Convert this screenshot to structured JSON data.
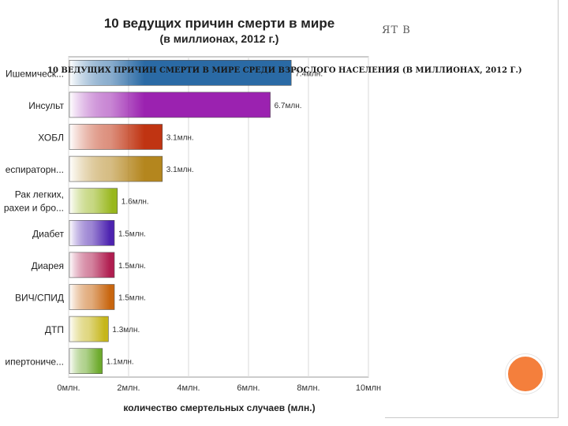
{
  "slide": {
    "title_fragment": "ЯТ В",
    "caption": "10 ВЕДУЩИХ ПРИЧИН СМЕРТИ В МИРЕ СРЕДИ ВЗРОСЛОГО НАСЕЛЕНИЯ (В МИЛЛИОНАХ, 2012 Г.)",
    "accent_color": "#f47f3c"
  },
  "chart_data": {
    "type": "bar",
    "orientation": "horizontal",
    "title": "10 ведущих причин смерти в мире",
    "subtitle": "(в миллионах, 2012 г.)",
    "xlabel": "количество смертельных случаев (млн.)",
    "ylabel": "",
    "xlim": [
      0,
      10
    ],
    "grid": true,
    "x_ticks": [
      0,
      2,
      4,
      6,
      8,
      10
    ],
    "x_tick_labels": [
      "0млн.",
      "2млн.",
      "4млн.",
      "6млн.",
      "8млн.",
      "10млн"
    ],
    "categories": [
      [
        "Ишемическ..."
      ],
      [
        "Инсульт"
      ],
      [
        "ХОБЛ"
      ],
      [
        "еспираторн..."
      ],
      [
        "Рак легких,",
        "рахеи и бро..."
      ],
      [
        "Диабет"
      ],
      [
        "Диарея"
      ],
      [
        "ВИЧ/СПИД"
      ],
      [
        "ДТП"
      ],
      [
        "ипертониче..."
      ]
    ],
    "values": [
      7.4,
      6.7,
      3.1,
      3.1,
      1.6,
      1.5,
      1.5,
      1.5,
      1.3,
      1.1
    ],
    "value_labels": [
      "7.4млн.",
      "6.7млн.",
      "3.1млн.",
      "3.1млн.",
      "1.6млн.",
      "1.5млн.",
      "1.5млн.",
      "1.5млн.",
      "1.3млн.",
      "1.1млн."
    ],
    "colors": [
      "#2a6aa5",
      "#9b22b0",
      "#c03412",
      "#b4861e",
      "#98b71c",
      "#4d23b0",
      "#b01e50",
      "#c8660f",
      "#c6b61a",
      "#6eab2e"
    ]
  }
}
